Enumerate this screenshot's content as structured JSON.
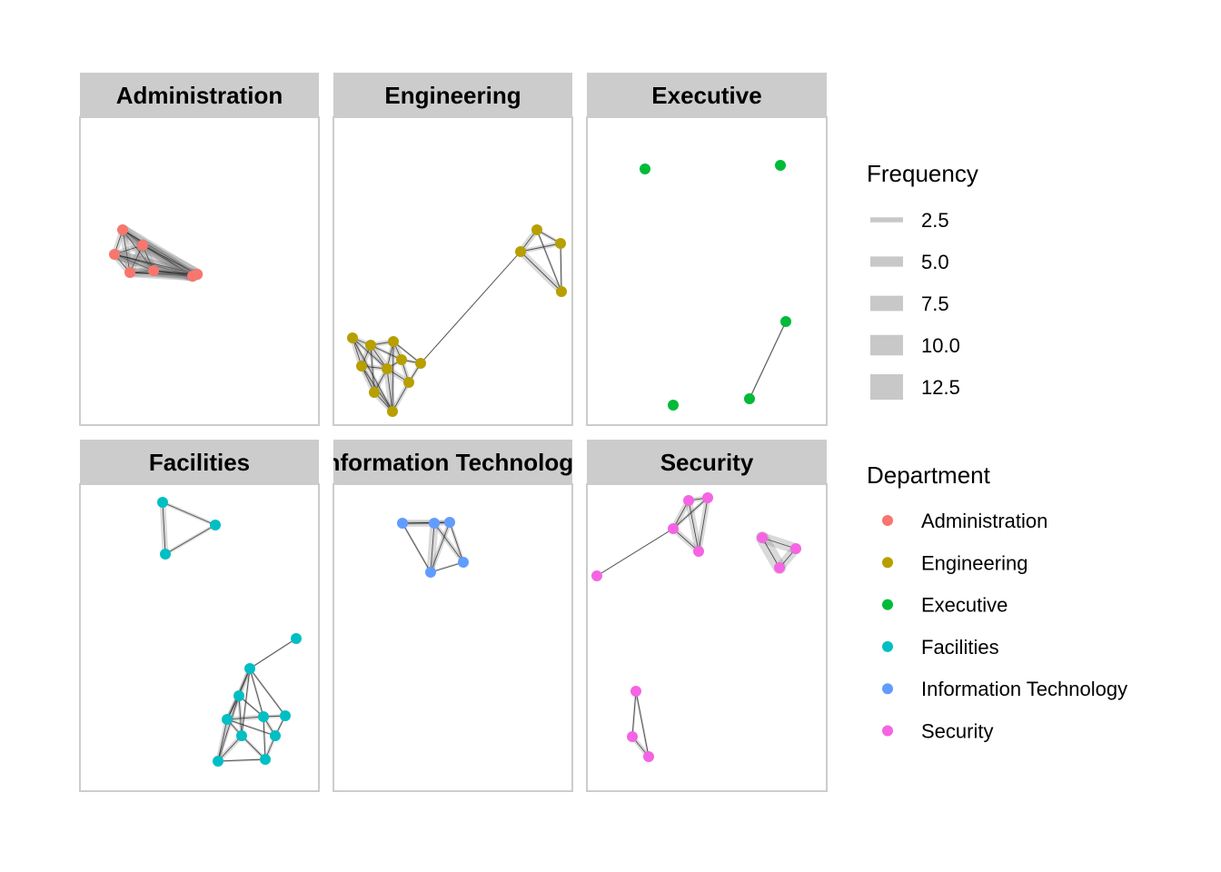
{
  "chart_data": {
    "type": "network",
    "facets": [
      {
        "label": "Administration"
      },
      {
        "label": "Engineering"
      },
      {
        "label": "Executive"
      },
      {
        "label": "Facilities"
      },
      {
        "label": "Information Technology"
      },
      {
        "label": "Security"
      }
    ],
    "legend_frequency": {
      "title": "Frequency",
      "items": [
        {
          "label": "2.5",
          "value": 2.5
        },
        {
          "label": "5.0",
          "value": 5.0
        },
        {
          "label": "7.5",
          "value": 7.5
        },
        {
          "label": "10.0",
          "value": 10.0
        },
        {
          "label": "12.5",
          "value": 12.5
        }
      ]
    },
    "legend_department": {
      "title": "Department",
      "items": [
        {
          "label": "Administration",
          "color": "#F8766D"
        },
        {
          "label": "Engineering",
          "color": "#B79F00"
        },
        {
          "label": "Executive",
          "color": "#00BA38"
        },
        {
          "label": "Facilities",
          "color": "#00BFC4"
        },
        {
          "label": "Information Technology",
          "color": "#619CFF"
        },
        {
          "label": "Security",
          "color": "#F564E3"
        }
      ]
    },
    "panel_background": "#FFFFFF",
    "strip_color": "#CCCCCC",
    "panel_border_color": "#CCCCCC"
  }
}
